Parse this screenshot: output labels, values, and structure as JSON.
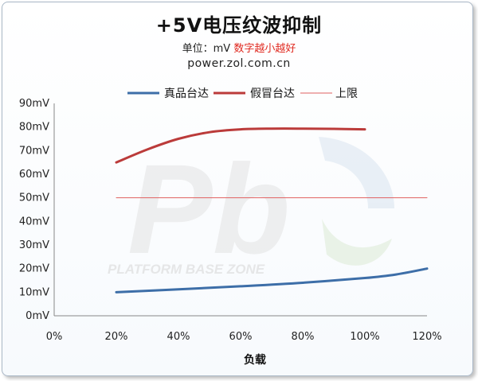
{
  "title": "+5V电压纹波抑制",
  "subtitle": {
    "unit": "单位：mV",
    "note": "数字越小越好"
  },
  "site": "power.zol.com.cn",
  "watermark": {
    "text": "PLATFORM BASE ZONE",
    "letters": "Pb"
  },
  "colors": {
    "genuine": "#3d6ea8",
    "counterfeit": "#bb3b3a",
    "limit": "#e06060"
  },
  "chart_data": {
    "type": "line",
    "title": "+5V电压纹波抑制",
    "xlabel": "负载",
    "ylabel": "",
    "x_ticks": [
      "0%",
      "20%",
      "40%",
      "60%",
      "80%",
      "100%",
      "120%"
    ],
    "y_ticks": [
      "0mV",
      "10mV",
      "20mV",
      "30mV",
      "40mV",
      "50mV",
      "60mV",
      "70mV",
      "80mV",
      "90mV"
    ],
    "xlim": [
      0,
      120
    ],
    "ylim": [
      0,
      90
    ],
    "grid": false,
    "legend": "top",
    "series": [
      {
        "name": "真品台达",
        "x": [
          20,
          40,
          60,
          80,
          100,
          110,
          120
        ],
        "y": [
          10,
          11.2,
          12.5,
          14,
          16,
          17.5,
          20
        ]
      },
      {
        "name": "假冒台达",
        "x": [
          20,
          30,
          40,
          50,
          60,
          70,
          80,
          90,
          100
        ],
        "y": [
          65,
          70.5,
          75,
          77.8,
          79,
          79.3,
          79.3,
          79.2,
          79
        ]
      },
      {
        "name": "上限",
        "x": [
          20,
          120
        ],
        "y": [
          50,
          50
        ]
      }
    ]
  }
}
